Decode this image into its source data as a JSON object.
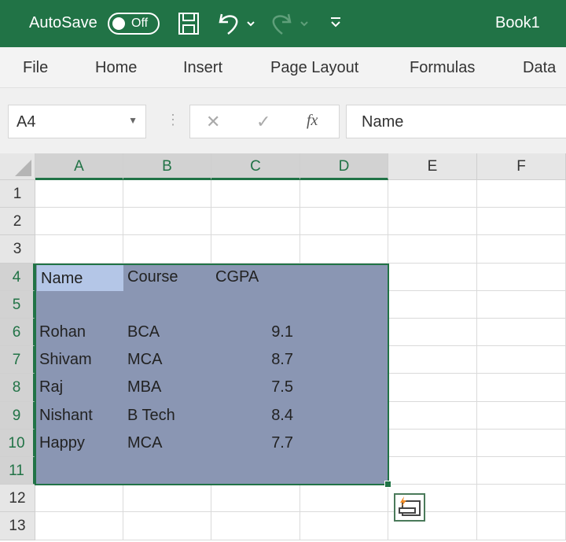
{
  "titlebar": {
    "autosave_label": "AutoSave",
    "autosave_state": "Off",
    "book_title": "Book1",
    "icons": [
      "save-icon",
      "undo-icon",
      "redo-icon",
      "customize-qat-icon"
    ]
  },
  "ribbon": {
    "tabs": [
      "File",
      "Home",
      "Insert",
      "Page Layout",
      "Formulas",
      "Data"
    ]
  },
  "formula_bar": {
    "name_box": "A4",
    "formula_value": "Name",
    "cancel_icon": "✕",
    "enter_icon": "✓",
    "fx_label": "fx"
  },
  "columns": [
    "A",
    "B",
    "C",
    "D",
    "E",
    "F"
  ],
  "rows": [
    "1",
    "2",
    "3",
    "4",
    "5",
    "6",
    "7",
    "8",
    "9",
    "10",
    "11",
    "12",
    "13"
  ],
  "selection": {
    "range": "A4:D11",
    "active_cell": "A4",
    "fill_color": "#8a96b3",
    "active_fill": "#b4c6e7",
    "accent": "#217346"
  },
  "cells": {
    "A4": "Name",
    "B4": "Course",
    "C4": "CGPA",
    "A6": "Rohan",
    "B6": "BCA",
    "C6": "9.1",
    "A7": "Shivam",
    "B7": "MCA",
    "C7": "8.7",
    "A8": "Raj",
    "B8": "MBA",
    "C8": "7.5",
    "A9": "Nishant",
    "B9": "B Tech",
    "C9": "8.4",
    "A10": "Happy",
    "B10": "MCA",
    "C10": "7.7"
  }
}
